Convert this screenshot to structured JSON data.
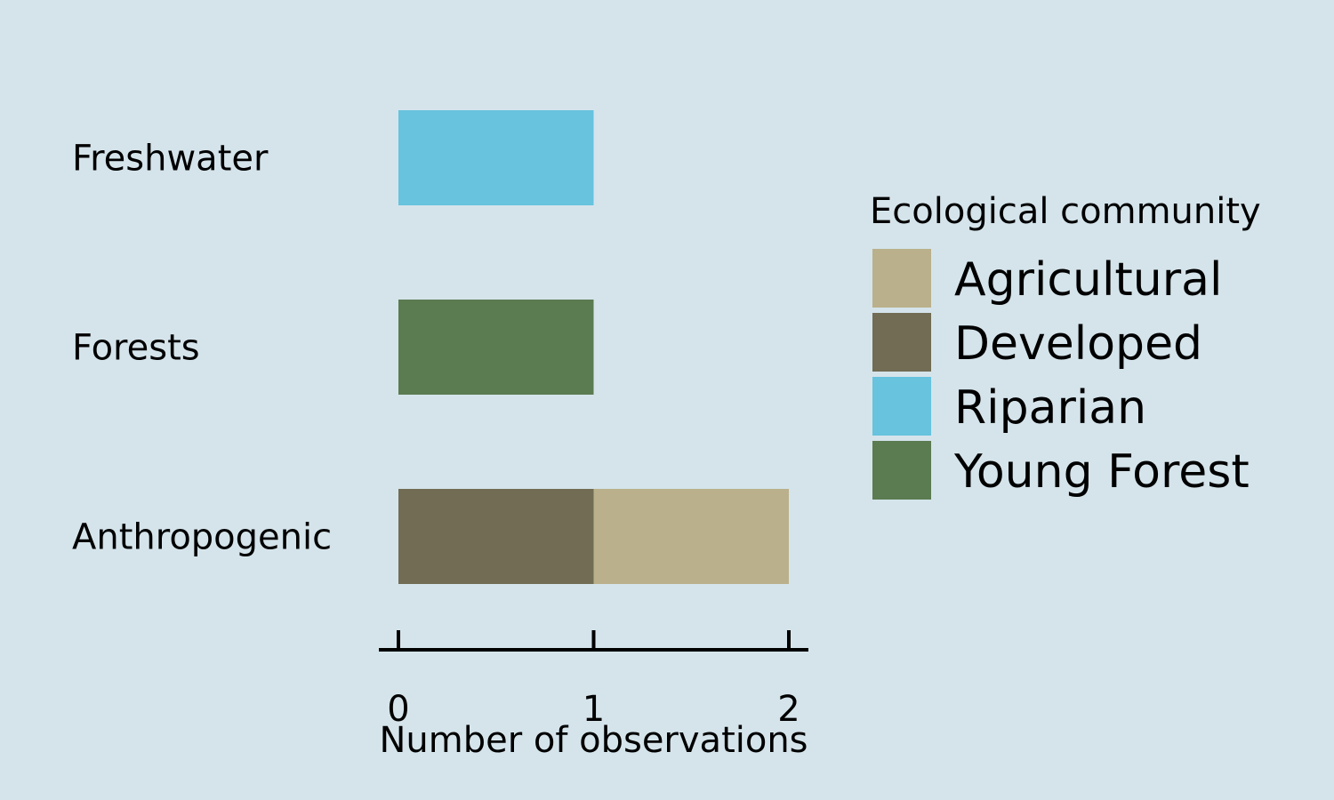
{
  "chart_data": {
    "type": "bar",
    "orientation": "horizontal",
    "stacked": true,
    "categories": [
      "Freshwater",
      "Forests",
      "Anthropogenic"
    ],
    "series": [
      {
        "name": "Agricultural",
        "values": [
          0,
          0,
          1
        ],
        "color": "#bab08b"
      },
      {
        "name": "Developed",
        "values": [
          0,
          0,
          1
        ],
        "color": "#716c53"
      },
      {
        "name": "Riparian",
        "values": [
          1,
          0,
          0
        ],
        "color": "#67c3de"
      },
      {
        "name": "Young Forest",
        "values": [
          0,
          1,
          0
        ],
        "color": "#5b7b51"
      }
    ],
    "stack_order": [
      "Developed",
      "Agricultural",
      "Riparian",
      "Young Forest"
    ],
    "xlabel": "Number of observations",
    "ylabel": "",
    "xlim": [
      0,
      2
    ],
    "xticks": [
      0,
      1,
      2
    ],
    "grid": false,
    "legend": {
      "title": "Ecological community",
      "position": "right"
    },
    "background": "#d5e4eb"
  }
}
